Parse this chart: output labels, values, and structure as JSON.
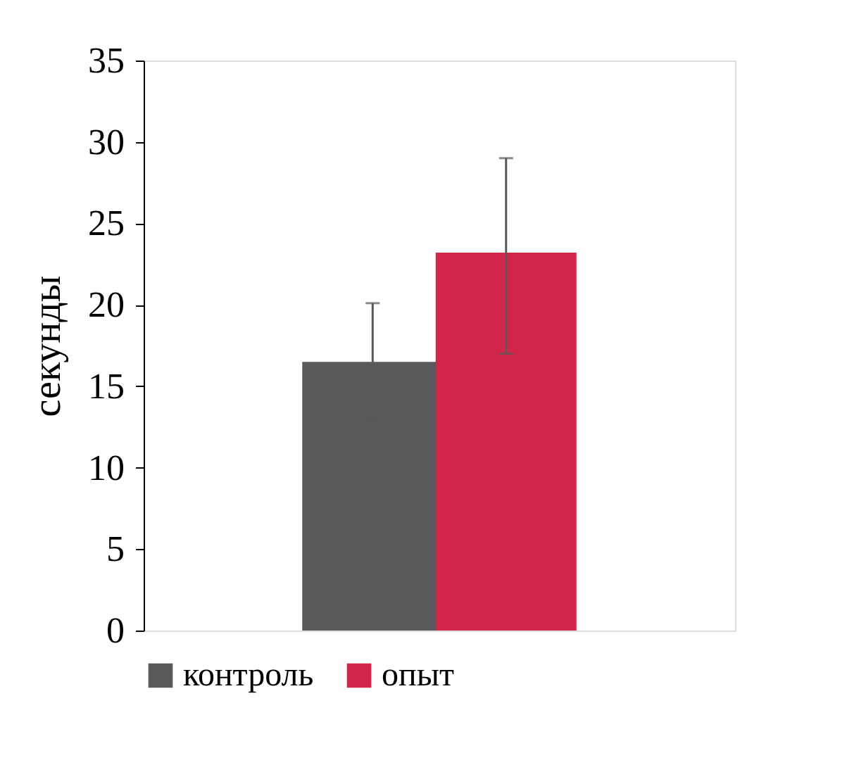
{
  "chart_data": {
    "type": "bar",
    "ylabel": "секунды",
    "categories": [
      null
    ],
    "series": [
      {
        "name": "контроль",
        "color": "#595959",
        "values": [
          16.5
        ],
        "errors": [
          3.6
        ]
      },
      {
        "name": "опыт",
        "color": "#d2254a",
        "values": [
          23.2
        ],
        "errors": [
          [
            17.0,
            29.0
          ]
        ]
      }
    ],
    "ylim": [
      0,
      35
    ],
    "yticks": [
      0,
      5,
      10,
      15,
      20,
      25,
      30,
      35
    ],
    "grid": false,
    "legend": "bottom",
    "tick_labels": "y"
  }
}
